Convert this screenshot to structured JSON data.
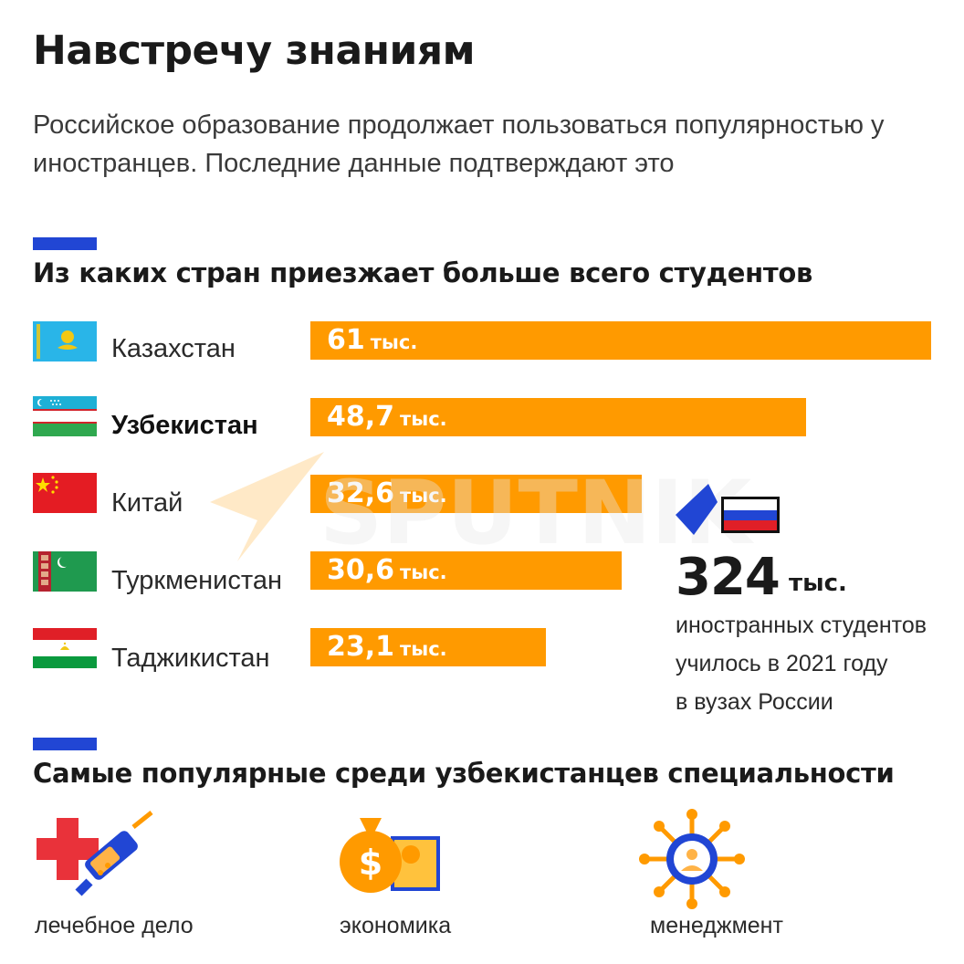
{
  "title": "Навстречу знаниям",
  "subtitle": "Российское образование продолжает пользоваться популярностью у иностранцев. Последние данные подтверждают это",
  "section_countries": "Из каких стран приезжает больше всего студентов",
  "section_specialties": "Самые популярные среди узбекистанцев специальности",
  "watermark": "SPUTNIK",
  "chart_data": {
    "type": "bar",
    "orientation": "horizontal",
    "title": "Из каких стран приезжает больше всего студентов",
    "unit": "тыс.",
    "categories": [
      "Казахстан",
      "Узбекистан",
      "Китай",
      "Туркменистан",
      "Таджикистан"
    ],
    "values": [
      61,
      48.7,
      32.6,
      30.6,
      23.1
    ],
    "value_labels": [
      "61",
      "48,7",
      "32,6",
      "30,6",
      "23,1"
    ],
    "highlighted_category": "Узбекистан",
    "bar_color": "#ff9a00",
    "xlim": [
      0,
      61
    ]
  },
  "total": {
    "value": "324",
    "unit": "тыс.",
    "caption_lines": [
      "иностранных студентов",
      "училось в 2021 году",
      "в вузах России"
    ]
  },
  "specialties": [
    {
      "label": "лечебное дело",
      "icon": "medicine-syringe-icon"
    },
    {
      "label": "экономика",
      "icon": "money-bag-icon"
    },
    {
      "label": "менеджмент",
      "icon": "management-wheel-icon"
    }
  ],
  "colors": {
    "accent_blue": "#2146d4",
    "bar_orange": "#ff9a00",
    "text": "#1a1a1a"
  }
}
